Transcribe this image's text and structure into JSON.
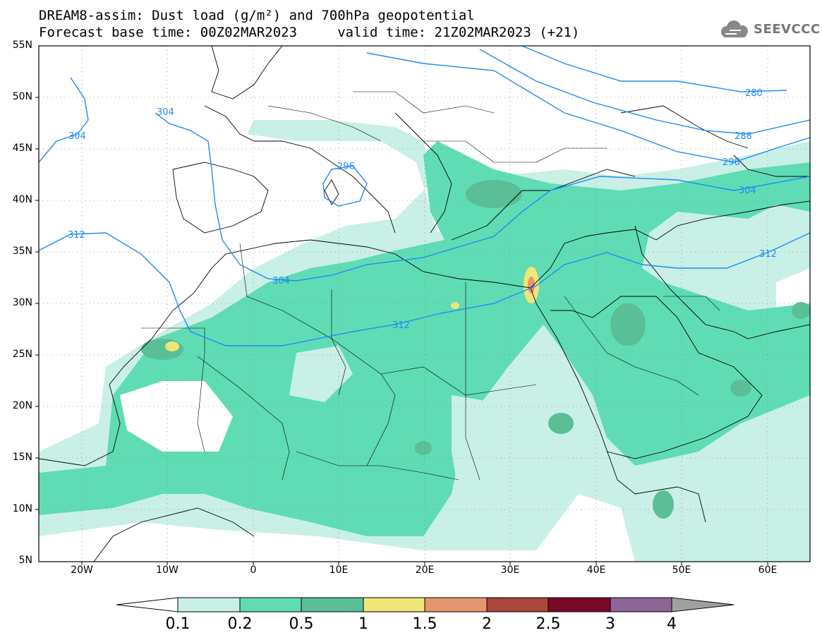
{
  "title": {
    "line1": "DREAM8-assim: Dust load (g/m²) and 700hPa geopotential",
    "line2": "Forecast base time: 00Z02MAR2023     valid time: 21Z02MAR2023 (+21)"
  },
  "logo": {
    "text": "SEEVCCC",
    "icon": "cloud-icon"
  },
  "axes": {
    "lat_labels": [
      "55N",
      "50N",
      "45N",
      "40N",
      "35N",
      "30N",
      "25N",
      "20N",
      "15N",
      "10N",
      "5N"
    ],
    "lon_labels": [
      "20W",
      "10W",
      "0",
      "10E",
      "20E",
      "30E",
      "40E",
      "50E",
      "60E"
    ],
    "lat_range": [
      5,
      55
    ],
    "lon_range": [
      -25,
      65
    ]
  },
  "contours": {
    "labels": [
      "304",
      "304",
      "296",
      "312",
      "304",
      "312",
      "280",
      "288",
      "296",
      "304",
      "312"
    ]
  },
  "colorbar": {
    "labels": [
      "0.1",
      "0.2",
      "0.5",
      "1",
      "1.5",
      "2",
      "2.5",
      "3",
      "4"
    ],
    "colors": [
      "#ffffff",
      "#c8f0e6",
      "#5fdcb4",
      "#5abe96",
      "#f0e678",
      "#e6966e",
      "#aa463c",
      "#780a28",
      "#8c6496",
      "#a0a0a0"
    ]
  },
  "colors": {
    "contour_line": "#1e8cf0",
    "border": "#000000"
  }
}
